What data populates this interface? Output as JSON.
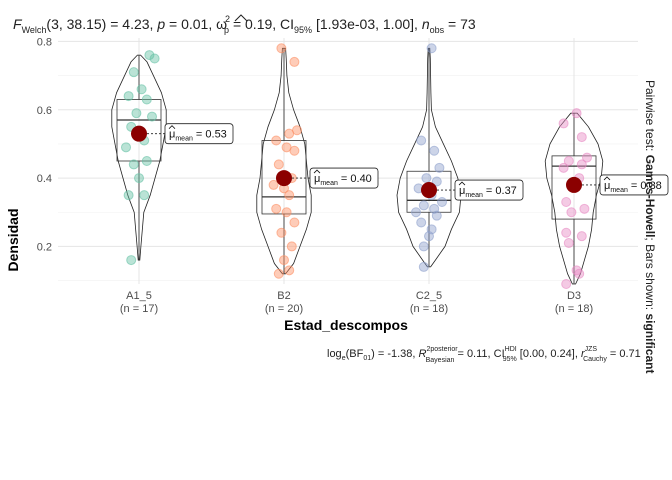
{
  "chart_data": {
    "type": "violin",
    "title_parts": {
      "F": "F",
      "welch": "Welch",
      "args": "(3, 38.15) = 4.23, ",
      "p": "p",
      "p_val": " = 0.01, ",
      "omega": "ω",
      "omega_sub": "p",
      "omega_sup": "2",
      "omega_val": " = 0.19, CI",
      "ci_sub": "95%",
      "ci_val": " [1.93e-03, 1.00], ",
      "n": "n",
      "n_sub": "obs",
      "n_val": " = 73"
    },
    "xlabel": "Estad_descompos",
    "ylabel": "Densidad",
    "ylim": [
      0.09,
      0.81
    ],
    "yticks": [
      0.2,
      0.4,
      0.6,
      0.8
    ],
    "ytick_labels": [
      "0.2",
      "0.4",
      "0.6",
      "0.8"
    ],
    "right_label_parts": {
      "a": "Pairwise test: ",
      "b": "Games-Howell",
      "c": "; Bars shown: ",
      "d": "significant"
    },
    "caption_parts": {
      "a": "log",
      "a_sub": "e",
      "b": "(BF",
      "b_sub": "01",
      "c": ") = -1.38, ",
      "R": "R",
      "R_sup": "2",
      "R_sup2": "posterior",
      "R_sub": "Bayesian",
      "d": " = 0.11, CI",
      "ci_sup": "HDI",
      "ci_sub": "95%",
      "e": " [0.00, 0.24], ",
      "r": "r",
      "r_sup": "JZS",
      "r_sub": "Cauchy",
      "f": " = 0.71"
    },
    "mu_label": "μ",
    "mu_sub": "mean",
    "groups": [
      {
        "name": "A1_5",
        "n_label": "(n = 17)",
        "color": "#66C2A5",
        "mean": 0.53,
        "mean_label": "= 0.53",
        "box": {
          "q1": 0.45,
          "median": 0.57,
          "q3": 0.63,
          "whisker_low": 0.16,
          "whisker_high": 0.76
        },
        "violin": [
          [
            0.16,
            0.005
          ],
          [
            0.2,
            0.012
          ],
          [
            0.3,
            0.03
          ],
          [
            0.35,
            0.07
          ],
          [
            0.4,
            0.1
          ],
          [
            0.45,
            0.13
          ],
          [
            0.5,
            0.15
          ],
          [
            0.55,
            0.17
          ],
          [
            0.6,
            0.17
          ],
          [
            0.65,
            0.14
          ],
          [
            0.7,
            0.09
          ],
          [
            0.74,
            0.05
          ],
          [
            0.76,
            0.01
          ]
        ],
        "points": [
          0.76,
          0.75,
          0.71,
          0.66,
          0.64,
          0.63,
          0.59,
          0.58,
          0.55,
          0.51,
          0.49,
          0.45,
          0.44,
          0.4,
          0.35,
          0.35,
          0.16
        ],
        "jitter": [
          0.4,
          0.6,
          -0.2,
          0.1,
          -0.4,
          0.3,
          -0.1,
          0.5,
          -0.3,
          0.2,
          -0.5,
          0.3,
          -0.2,
          0.0,
          -0.4,
          0.2,
          -0.3
        ]
      },
      {
        "name": "B2",
        "n_label": "(n = 20)",
        "color": "#FC8D62",
        "mean": 0.4,
        "mean_label": "= 0.40",
        "box": {
          "q1": 0.295,
          "median": 0.345,
          "q3": 0.51,
          "whisker_low": 0.12,
          "whisker_high": 0.78
        },
        "violin": [
          [
            0.12,
            0.01
          ],
          [
            0.15,
            0.06
          ],
          [
            0.2,
            0.1
          ],
          [
            0.25,
            0.14
          ],
          [
            0.3,
            0.17
          ],
          [
            0.35,
            0.17
          ],
          [
            0.4,
            0.15
          ],
          [
            0.45,
            0.14
          ],
          [
            0.5,
            0.13
          ],
          [
            0.55,
            0.1
          ],
          [
            0.6,
            0.06
          ],
          [
            0.65,
            0.03
          ],
          [
            0.7,
            0.018
          ],
          [
            0.75,
            0.014
          ],
          [
            0.78,
            0.01
          ]
        ],
        "points": [
          0.78,
          0.74,
          0.54,
          0.53,
          0.51,
          0.49,
          0.48,
          0.44,
          0.4,
          0.38,
          0.37,
          0.35,
          0.31,
          0.3,
          0.27,
          0.24,
          0.2,
          0.16,
          0.13,
          0.12
        ],
        "jitter": [
          -0.1,
          0.4,
          0.5,
          0.2,
          -0.3,
          0.1,
          0.4,
          -0.2,
          0.3,
          -0.4,
          0.0,
          0.2,
          -0.3,
          0.1,
          0.4,
          -0.1,
          0.3,
          0.0,
          0.2,
          -0.2
        ]
      },
      {
        "name": "C2_5",
        "n_label": "(n = 18)",
        "color": "#8DA0CB",
        "mean": 0.365,
        "mean_label": "= 0.37",
        "box": {
          "q1": 0.3,
          "median": 0.335,
          "q3": 0.42,
          "whisker_low": 0.14,
          "whisker_high": 0.78
        },
        "violin": [
          [
            0.14,
            0.01
          ],
          [
            0.16,
            0.04
          ],
          [
            0.2,
            0.1
          ],
          [
            0.25,
            0.14
          ],
          [
            0.3,
            0.19
          ],
          [
            0.35,
            0.2
          ],
          [
            0.4,
            0.18
          ],
          [
            0.45,
            0.14
          ],
          [
            0.5,
            0.09
          ],
          [
            0.55,
            0.04
          ],
          [
            0.6,
            0.015
          ],
          [
            0.65,
            0.012
          ],
          [
            0.7,
            0.01
          ],
          [
            0.75,
            0.008
          ],
          [
            0.78,
            0.005
          ]
        ],
        "points": [
          0.78,
          0.51,
          0.48,
          0.43,
          0.4,
          0.39,
          0.37,
          0.35,
          0.33,
          0.32,
          0.31,
          0.3,
          0.29,
          0.27,
          0.25,
          0.23,
          0.2,
          0.14
        ],
        "jitter": [
          0.1,
          -0.3,
          0.2,
          0.4,
          -0.1,
          0.3,
          -0.4,
          0.1,
          0.5,
          -0.2,
          0.2,
          -0.5,
          0.3,
          -0.3,
          0.1,
          0.0,
          -0.2,
          -0.2
        ]
      },
      {
        "name": "D3",
        "n_label": "(n = 18)",
        "color": "#E78AC3",
        "mean": 0.38,
        "mean_label": "= 0.38",
        "box": {
          "q1": 0.28,
          "median": 0.435,
          "q3": 0.465,
          "whisker_low": 0.09,
          "whisker_high": 0.59
        },
        "violin": [
          [
            0.09,
            0.01
          ],
          [
            0.12,
            0.04
          ],
          [
            0.2,
            0.09
          ],
          [
            0.25,
            0.11
          ],
          [
            0.3,
            0.12
          ],
          [
            0.35,
            0.14
          ],
          [
            0.4,
            0.17
          ],
          [
            0.45,
            0.18
          ],
          [
            0.5,
            0.15
          ],
          [
            0.55,
            0.09
          ],
          [
            0.59,
            0.02
          ]
        ],
        "points": [
          0.59,
          0.56,
          0.52,
          0.46,
          0.45,
          0.44,
          0.43,
          0.4,
          0.38,
          0.33,
          0.31,
          0.3,
          0.24,
          0.23,
          0.21,
          0.13,
          0.12,
          0.09
        ],
        "jitter": [
          0.1,
          -0.4,
          0.3,
          0.5,
          -0.2,
          0.3,
          -0.4,
          0.2,
          0.1,
          -0.3,
          0.4,
          -0.1,
          -0.3,
          0.3,
          -0.2,
          0.1,
          0.2,
          -0.3
        ]
      }
    ]
  }
}
